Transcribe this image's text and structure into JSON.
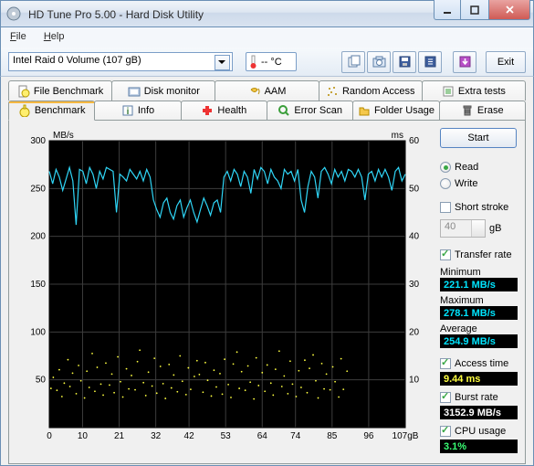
{
  "window": {
    "title": "HD Tune Pro 5.00 - Hard Disk Utility"
  },
  "menu": {
    "file": "File",
    "help": "Help"
  },
  "toolbar": {
    "drive": "Intel   Raid 0 Volume (107 gB)",
    "temp": "-- °C",
    "exit": "Exit"
  },
  "tabs_upper": [
    {
      "label": "File Benchmark"
    },
    {
      "label": "Disk monitor"
    },
    {
      "label": "AAM"
    },
    {
      "label": "Random Access"
    },
    {
      "label": "Extra tests"
    }
  ],
  "tabs_lower": [
    {
      "label": "Benchmark"
    },
    {
      "label": "Info"
    },
    {
      "label": "Health"
    },
    {
      "label": "Error Scan"
    },
    {
      "label": "Folder Usage"
    },
    {
      "label": "Erase"
    }
  ],
  "chart": {
    "y_left_label": "MB/s",
    "y_right_label": "ms",
    "x_unit": "gB",
    "y_left_max": 300,
    "y_left_ticks": [
      50,
      100,
      150,
      200,
      250,
      300
    ],
    "y_right_max": 60,
    "y_right_ticks": [
      10,
      20,
      30,
      40,
      50,
      60
    ],
    "x_max": 107,
    "x_ticks": [
      0,
      10,
      21,
      32,
      42,
      53,
      64,
      74,
      85,
      96,
      107
    ],
    "bg": "#000000",
    "grid": "#3d3d3d",
    "transfer_color": "#2fd6f7",
    "access_color": "#ffff40",
    "transfer": [
      268,
      255,
      270,
      262,
      248,
      260,
      272,
      258,
      212,
      270,
      268,
      255,
      272,
      265,
      250,
      268,
      260,
      272,
      270,
      268,
      225,
      265,
      262,
      258,
      270,
      265,
      260,
      268,
      258,
      270,
      262,
      238,
      228,
      220,
      235,
      240,
      225,
      218,
      232,
      238,
      220,
      230,
      238,
      225,
      215,
      228,
      240,
      232,
      222,
      235,
      238,
      225,
      262,
      268,
      258,
      270,
      265,
      252,
      268,
      262,
      245,
      270,
      260,
      272,
      268,
      255,
      270,
      262,
      258,
      250,
      270,
      265,
      268,
      258,
      270,
      238,
      225,
      252,
      268,
      262,
      240,
      268,
      272,
      265,
      255,
      270,
      262,
      268,
      258,
      270,
      268,
      262,
      270,
      262,
      238,
      265,
      268,
      258,
      270,
      262,
      270,
      262,
      248,
      268,
      272,
      258,
      265
    ],
    "access": [
      8.2,
      10.5,
      7.8,
      12.1,
      6.5,
      9.3,
      14.2,
      8.6,
      11.4,
      7.1,
      13.0,
      9.8,
      6.2,
      11.8,
      8.4,
      15.5,
      7.6,
      12.6,
      9.1,
      6.8,
      13.5,
      8.9,
      11.2,
      7.3,
      14.8,
      9.6,
      6.4,
      12.3,
      8.1,
      10.9,
      7.9,
      13.8,
      16.2,
      9.4,
      6.7,
      11.6,
      8.7,
      14.5,
      7.2,
      12.8,
      9.2,
      6.1,
      13.2,
      8.3,
      11.0,
      7.5,
      15.0,
      9.7,
      6.9,
      12.5,
      8.0,
      10.7,
      14.0,
      11.1,
      7.4,
      13.6,
      9.9,
      6.6,
      12.0,
      8.5,
      11.3,
      7.0,
      14.3,
      9.0,
      6.3,
      13.3,
      15.8,
      8.2,
      11.7,
      7.8,
      12.9,
      9.5,
      6.0,
      14.6,
      8.8,
      11.5,
      7.6,
      13.1,
      9.3,
      6.8,
      12.2,
      16.0,
      8.6,
      10.8,
      7.1,
      13.9,
      9.1,
      6.5,
      11.9,
      8.4,
      14.1,
      7.3,
      12.4,
      15.2,
      9.8,
      6.2,
      13.4,
      8.1,
      11.2,
      7.9,
      12.7,
      9.6,
      6.4,
      14.4,
      8.0,
      11.8
    ],
    "access_x": [
      0.5,
      1.2,
      2.3,
      3.0,
      3.8,
      4.5,
      5.6,
      6.2,
      7.0,
      8.1,
      8.8,
      9.5,
      10.6,
      11.3,
      12.0,
      12.9,
      13.7,
      14.4,
      15.5,
      16.2,
      17.0,
      18.1,
      18.8,
      19.5,
      20.6,
      21.4,
      22.1,
      23.2,
      23.9,
      24.7,
      25.8,
      26.5,
      27.2,
      28.3,
      29.0,
      29.8,
      30.9,
      31.6,
      32.3,
      33.4,
      34.2,
      34.9,
      36.0,
      36.7,
      37.4,
      38.5,
      39.3,
      40.0,
      41.1,
      41.8,
      42.5,
      43.6,
      44.4,
      45.1,
      46.2,
      46.9,
      47.6,
      48.7,
      49.5,
      50.2,
      51.3,
      52.0,
      52.7,
      53.8,
      54.6,
      55.3,
      56.4,
      57.1,
      57.8,
      58.9,
      59.7,
      60.4,
      61.5,
      62.2,
      62.9,
      64.0,
      64.8,
      65.5,
      66.6,
      67.3,
      68.0,
      69.1,
      69.9,
      70.6,
      71.7,
      72.4,
      73.1,
      74.2,
      75.0,
      75.7,
      76.8,
      77.5,
      78.2,
      79.3,
      80.1,
      80.8,
      81.9,
      82.6,
      83.3,
      84.4,
      85.2,
      85.9,
      87.0,
      87.7,
      88.4,
      89.5
    ]
  },
  "panel": {
    "start": "Start",
    "read": "Read",
    "write": "Write",
    "read_on": true,
    "short_stroke": "Short stroke",
    "short_stroke_on": false,
    "short_stroke_val": "40",
    "short_stroke_unit": "gB",
    "transfer_rate": "Transfer rate",
    "transfer_rate_on": true,
    "min_label": "Minimum",
    "min_val": "221.1 MB/s",
    "max_label": "Maximum",
    "max_val": "278.1 MB/s",
    "avg_label": "Average",
    "avg_val": "254.9 MB/s",
    "access_time": "Access time",
    "access_time_on": true,
    "access_val": "9.44 ms",
    "burst": "Burst rate",
    "burst_on": true,
    "burst_val": "3152.9 MB/s",
    "cpu": "CPU usage",
    "cpu_on": true,
    "cpu_val": "3.1%"
  }
}
